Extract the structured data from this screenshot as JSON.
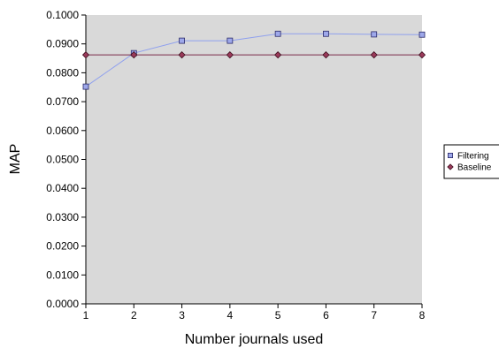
{
  "chart_data": {
    "type": "line",
    "xlabel": "Number journals used",
    "ylabel": "MAP",
    "x": [
      1,
      2,
      3,
      4,
      5,
      6,
      7,
      8
    ],
    "x_tick_labels": [
      "1",
      "2",
      "3",
      "4",
      "5",
      "6",
      "7",
      "8"
    ],
    "ylim": [
      0,
      0.1
    ],
    "y_tick_labels": [
      "0.0000",
      "0.0100",
      "0.0200",
      "0.0300",
      "0.0400",
      "0.0500",
      "0.0600",
      "0.0700",
      "0.0800",
      "0.0900",
      "0.1000"
    ],
    "y_ticks": [
      0,
      0.01,
      0.02,
      0.03,
      0.04,
      0.05,
      0.06,
      0.07,
      0.08,
      0.09,
      0.1
    ],
    "grid": false,
    "plot_background": "#d9d9d9",
    "legend_position": "right",
    "series": [
      {
        "name": "Filtering",
        "values": [
          0.0752,
          0.0868,
          0.0911,
          0.0911,
          0.0935,
          0.0935,
          0.0933,
          0.0932
        ],
        "line_color": "#8fa0ee",
        "marker": "square",
        "marker_fill": "#9ea8ea",
        "marker_stroke": "#2a2a6a"
      },
      {
        "name": "Baseline",
        "values": [
          0.0862,
          0.0862,
          0.0862,
          0.0862,
          0.0862,
          0.0862,
          0.0862,
          0.0862
        ],
        "line_color": "#7a2a4a",
        "marker": "diamond",
        "marker_fill": "#9a3a5a",
        "marker_stroke": "#3a0a1a"
      }
    ]
  }
}
